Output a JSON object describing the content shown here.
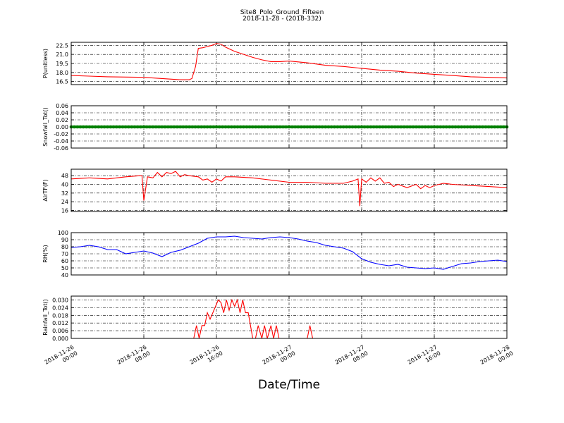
{
  "title": "Site8_Polo_Ground_Fifteen",
  "subtitle": "2018-11-28 - (2018-332)",
  "xlabel": "Date/Time",
  "x_ticks": [
    {
      "line1": "2018-11-26",
      "line2": "00:00",
      "hour": 0
    },
    {
      "line1": "2018-11-26",
      "line2": "08:00",
      "hour": 8
    },
    {
      "line1": "2018-11-26",
      "line2": "16:00",
      "hour": 16
    },
    {
      "line1": "2018-11-27",
      "line2": "00:00",
      "hour": 24
    },
    {
      "line1": "2018-11-27",
      "line2": "08:00",
      "hour": 32
    },
    {
      "line1": "2018-11-27",
      "line2": "16:00",
      "hour": 40
    },
    {
      "line1": "2018-11-28",
      "line2": "00:00",
      "hour": 48
    }
  ],
  "chart_data": [
    {
      "type": "line",
      "ylabel": "P(unitless)",
      "ylim": [
        16.0,
        23.0
      ],
      "yticks": [
        "16.5",
        "18.0",
        "19.5",
        "21.0",
        "22.5"
      ],
      "color": "#ff0000",
      "grid": true,
      "x": [
        0,
        2,
        4,
        6,
        8,
        10,
        12,
        13,
        13.3,
        13.7,
        14,
        14.5,
        15,
        15.5,
        16,
        16.5,
        17,
        18,
        20,
        21,
        22,
        23,
        24,
        26,
        28,
        30,
        32,
        34,
        36,
        38,
        40,
        42,
        44,
        46,
        48
      ],
      "values": [
        17.5,
        17.4,
        17.3,
        17.25,
        17.2,
        17.0,
        16.8,
        16.8,
        17.0,
        19.0,
        22.0,
        22.1,
        22.3,
        22.5,
        22.8,
        22.7,
        22.2,
        21.5,
        20.5,
        20.1,
        19.8,
        19.8,
        19.9,
        19.6,
        19.2,
        19.0,
        18.7,
        18.4,
        18.2,
        17.9,
        17.7,
        17.5,
        17.3,
        17.2,
        17.1
      ]
    },
    {
      "type": "line",
      "ylabel": "Snowfall_Tot()",
      "ylim": [
        -0.06,
        0.06
      ],
      "yticks": [
        "-0.06",
        "-0.04",
        "-0.02",
        "0.00",
        "0.02",
        "0.04",
        "0.06"
      ],
      "color": "#008000",
      "markers": true,
      "grid": true,
      "x": [
        0,
        48
      ],
      "values": [
        0.0,
        0.0
      ]
    },
    {
      "type": "line",
      "ylabel": "AirTF(F)",
      "ylim": [
        15,
        54
      ],
      "yticks": [
        "16",
        "24",
        "32",
        "40",
        "48"
      ],
      "color": "#ff0000",
      "grid": true,
      "x": [
        0,
        2,
        4,
        6,
        7.6,
        7.8,
        8,
        8.4,
        9,
        9.5,
        10,
        10.5,
        11,
        11.5,
        12,
        12.5,
        13,
        14,
        14.5,
        15,
        15.5,
        16,
        16.5,
        17,
        18,
        20,
        22,
        24,
        26,
        28,
        30,
        31,
        31.6,
        31.8,
        32,
        32.5,
        33,
        33.5,
        34,
        34.5,
        35,
        35.5,
        36,
        37,
        38,
        38.5,
        39,
        39.5,
        40,
        41,
        42,
        44,
        46,
        48
      ],
      "values": [
        45,
        46,
        45,
        47,
        48,
        48,
        25,
        47,
        46,
        51,
        47,
        51,
        50,
        52,
        47,
        49,
        48,
        47,
        44,
        45,
        42,
        45,
        43,
        47,
        47,
        46,
        44,
        42,
        42,
        41,
        41,
        43,
        45,
        20,
        45,
        42,
        46,
        43,
        46,
        41,
        42,
        38,
        40,
        37,
        40,
        36,
        39,
        37,
        39,
        41,
        40,
        39,
        38,
        37
      ]
    },
    {
      "type": "line",
      "ylabel": "RH(%)",
      "ylim": [
        40,
        100
      ],
      "yticks": [
        "40",
        "50",
        "60",
        "70",
        "80",
        "90",
        "100"
      ],
      "color": "#0000ff",
      "grid": true,
      "x": [
        0,
        1,
        2,
        3,
        4,
        5,
        6,
        7,
        8,
        9,
        10,
        11,
        12,
        13,
        14,
        15,
        16,
        17,
        18,
        19,
        20,
        21,
        22,
        23,
        24,
        25,
        26,
        27,
        28,
        29,
        30,
        31,
        32,
        33,
        34,
        35,
        36,
        37,
        38,
        39,
        40,
        41,
        42,
        43,
        44,
        45,
        46,
        47,
        48
      ],
      "values": [
        79,
        80,
        82,
        80,
        76,
        76,
        70,
        72,
        74,
        71,
        66,
        72,
        75,
        80,
        85,
        92,
        94,
        94,
        95,
        93,
        92,
        91,
        93,
        94,
        93,
        91,
        88,
        86,
        82,
        80,
        78,
        73,
        63,
        58,
        55,
        53,
        55,
        51,
        50,
        49,
        50,
        48,
        52,
        56,
        57,
        59,
        60,
        61,
        59
      ]
    },
    {
      "type": "line",
      "ylabel": "Rainfall_Tot()",
      "ylim": [
        0.0,
        0.033
      ],
      "yticks": [
        "0.000",
        "0.006",
        "0.012",
        "0.018",
        "0.024",
        "0.030"
      ],
      "color": "#ff0000",
      "grid": true,
      "x": [
        0,
        13.5,
        13.8,
        14.1,
        14.4,
        14.7,
        15,
        15.3,
        15.6,
        15.9,
        16.2,
        16.5,
        16.8,
        17.1,
        17.4,
        17.7,
        18,
        18.3,
        18.6,
        18.9,
        19.2,
        19.5,
        20,
        20.3,
        20.6,
        21,
        21.3,
        21.6,
        22,
        22.3,
        22.6,
        22.9,
        23.2,
        23.5,
        26,
        26.3,
        26.6,
        48
      ],
      "values": [
        0,
        0,
        0.01,
        0,
        0.01,
        0.01,
        0.02,
        0.015,
        0.02,
        0.025,
        0.03,
        0.028,
        0.02,
        0.03,
        0.022,
        0.03,
        0.025,
        0.03,
        0.02,
        0.03,
        0.02,
        0.02,
        0,
        0,
        0.01,
        0,
        0.01,
        0,
        0.01,
        0,
        0.01,
        0,
        0,
        0,
        0,
        0.01,
        0,
        0
      ]
    }
  ]
}
